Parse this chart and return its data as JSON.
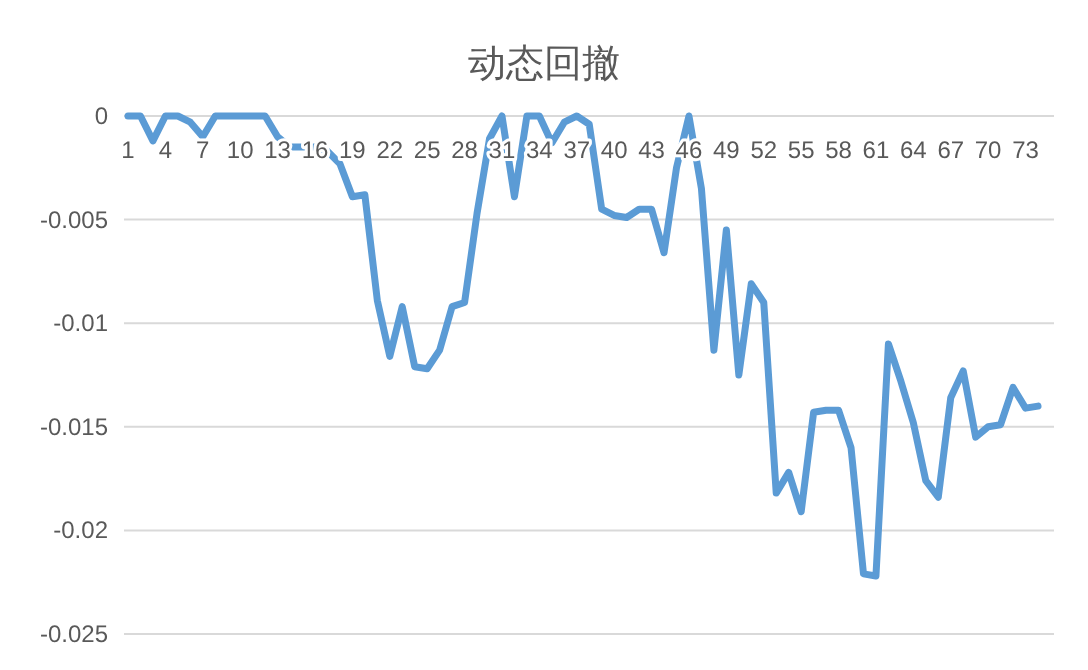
{
  "chart_data": {
    "type": "line",
    "title": "动态回撤",
    "categories": [
      "1",
      null,
      null,
      "4",
      null,
      null,
      "7",
      null,
      null,
      "10",
      null,
      null,
      "13",
      null,
      null,
      "16",
      null,
      null,
      "19",
      null,
      null,
      "22",
      null,
      null,
      "25",
      null,
      null,
      "28",
      null,
      null,
      "31",
      null,
      null,
      "34",
      null,
      null,
      "37",
      null,
      null,
      "40",
      null,
      null,
      "43",
      null,
      null,
      "46",
      null,
      null,
      "49",
      null,
      null,
      "52",
      null,
      null,
      "55",
      null,
      null,
      "58",
      null,
      null,
      "61",
      null,
      null,
      "64",
      null,
      null,
      "67",
      null,
      null,
      "70",
      null,
      null,
      "73",
      null
    ],
    "series": [
      {
        "color": "#5b9bd5",
        "values": [
          0,
          0,
          -0.0012,
          0,
          0,
          -0.0003,
          -0.001,
          0,
          0,
          0,
          0,
          0,
          -0.001,
          -0.0015,
          -0.0015,
          -0.0015,
          -0.0017,
          -0.0023,
          -0.0039,
          -0.0038,
          -0.0089,
          -0.0116,
          -0.0092,
          -0.0121,
          -0.0122,
          -0.0113,
          -0.0092,
          -0.009,
          -0.0047,
          -0.0011,
          0,
          -0.0039,
          0,
          0,
          -0.0013,
          -0.0003,
          0,
          -0.0004,
          -0.0045,
          -0.0048,
          -0.0049,
          -0.0045,
          -0.0045,
          -0.0066,
          -0.0025,
          0,
          -0.0035,
          -0.0113,
          -0.0055,
          -0.0125,
          -0.0081,
          -0.009,
          -0.0182,
          -0.0172,
          -0.0191,
          -0.0143,
          -0.0142,
          -0.0142,
          -0.016,
          -0.0221,
          -0.0222,
          -0.011,
          -0.0128,
          -0.0148,
          -0.0176,
          -0.0184,
          -0.0136,
          -0.0123,
          -0.0155,
          -0.015,
          -0.0149,
          -0.0131,
          -0.0141,
          -0.014
        ]
      }
    ],
    "ylim": [
      -0.025,
      0
    ],
    "yticks": [
      0,
      -0.005,
      -0.01,
      -0.015,
      -0.02,
      -0.025
    ],
    "grid": "y"
  }
}
